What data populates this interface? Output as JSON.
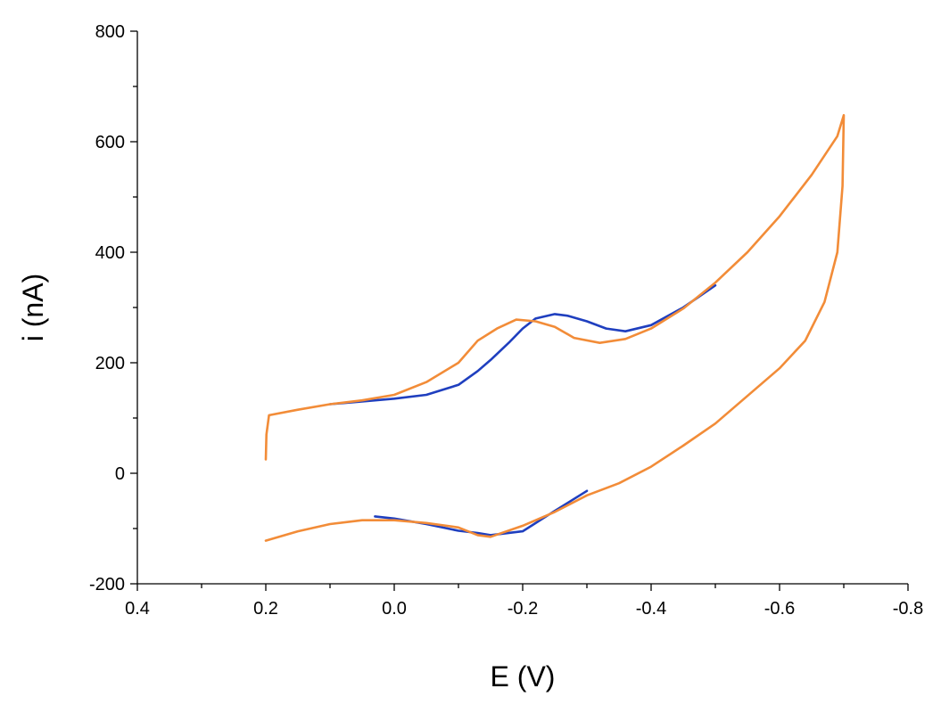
{
  "chart_data": {
    "type": "line",
    "title": "",
    "xlabel": "E (V)",
    "ylabel": "i (nA)",
    "xlim": [
      0.4,
      -0.8
    ],
    "ylim": [
      -200,
      800
    ],
    "x_reversed": true,
    "x_ticks": [
      0.4,
      0.2,
      0.0,
      -0.2,
      -0.4,
      -0.6,
      -0.8
    ],
    "x_tick_labels": [
      "0.4",
      "0.2",
      "0.0",
      "-0.2",
      "-0.4",
      "-0.6",
      "-0.8"
    ],
    "y_ticks": [
      -200,
      0,
      200,
      400,
      600,
      800
    ],
    "y_tick_labels": [
      "-200",
      "0",
      "200",
      "400",
      "600",
      "800"
    ],
    "grid": false,
    "legend": "none",
    "series": [
      {
        "color": "#1f3fbf",
        "x": [
          0.1,
          0.05,
          0.0,
          -0.05,
          -0.1,
          -0.13,
          -0.15,
          -0.18,
          -0.2,
          -0.22,
          -0.25,
          -0.27,
          -0.3,
          -0.33,
          -0.36,
          -0.4,
          -0.45,
          -0.5,
          null,
          0.03,
          0.0,
          -0.05,
          -0.1,
          -0.13,
          -0.15,
          -0.2,
          -0.25,
          -0.3
        ],
        "y": [
          125,
          130,
          135,
          142,
          160,
          185,
          205,
          238,
          262,
          280,
          288,
          285,
          275,
          262,
          257,
          268,
          300,
          340,
          null,
          -78,
          -82,
          -92,
          -104,
          -108,
          -112,
          -105,
          -68,
          -32
        ]
      },
      {
        "color": "#f28c38",
        "x": [
          0.2,
          0.199,
          0.195,
          0.15,
          0.1,
          0.05,
          0.0,
          -0.05,
          -0.1,
          -0.13,
          -0.16,
          -0.19,
          -0.22,
          -0.25,
          -0.28,
          -0.32,
          -0.36,
          -0.4,
          -0.45,
          -0.5,
          -0.55,
          -0.6,
          -0.65,
          -0.69,
          -0.7,
          -0.698,
          -0.69,
          -0.67,
          -0.64,
          -0.6,
          -0.55,
          -0.5,
          -0.45,
          -0.4,
          -0.35,
          -0.3,
          -0.25,
          -0.2,
          -0.15,
          -0.13,
          -0.1,
          -0.05,
          0.0,
          0.05,
          0.1,
          0.15,
          0.2
        ],
        "y": [
          25,
          70,
          105,
          115,
          125,
          132,
          142,
          165,
          200,
          240,
          262,
          278,
          275,
          265,
          245,
          236,
          243,
          262,
          298,
          345,
          400,
          465,
          540,
          610,
          648,
          520,
          400,
          310,
          240,
          190,
          140,
          90,
          50,
          12,
          -18,
          -40,
          -70,
          -95,
          -115,
          -112,
          -98,
          -90,
          -85,
          -85,
          -92,
          -105,
          -122
        ]
      }
    ]
  }
}
